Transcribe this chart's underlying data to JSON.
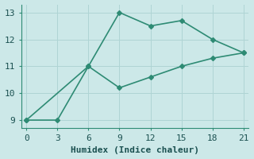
{
  "line1_x": [
    0,
    6,
    9,
    12,
    15,
    18,
    21
  ],
  "line1_y": [
    9.0,
    11.0,
    13.0,
    12.5,
    12.7,
    12.0,
    11.5
  ],
  "line2_x": [
    0,
    3,
    6,
    9,
    12,
    15,
    18,
    21
  ],
  "line2_y": [
    9.0,
    9.0,
    11.0,
    10.2,
    10.6,
    11.0,
    11.3,
    11.5
  ],
  "color": "#2e8b74",
  "bg_color": "#cce8e8",
  "xlabel": "Humidex (Indice chaleur)",
  "xlim": [
    -0.5,
    21.5
  ],
  "ylim": [
    8.7,
    13.3
  ],
  "xticks": [
    0,
    3,
    6,
    9,
    12,
    15,
    18,
    21
  ],
  "yticks": [
    9,
    10,
    11,
    12,
    13
  ],
  "grid_color": "#afd4d4",
  "marker": "D",
  "markersize": 3,
  "linewidth": 1.2,
  "xlabel_fontsize": 8,
  "tick_fontsize": 8
}
